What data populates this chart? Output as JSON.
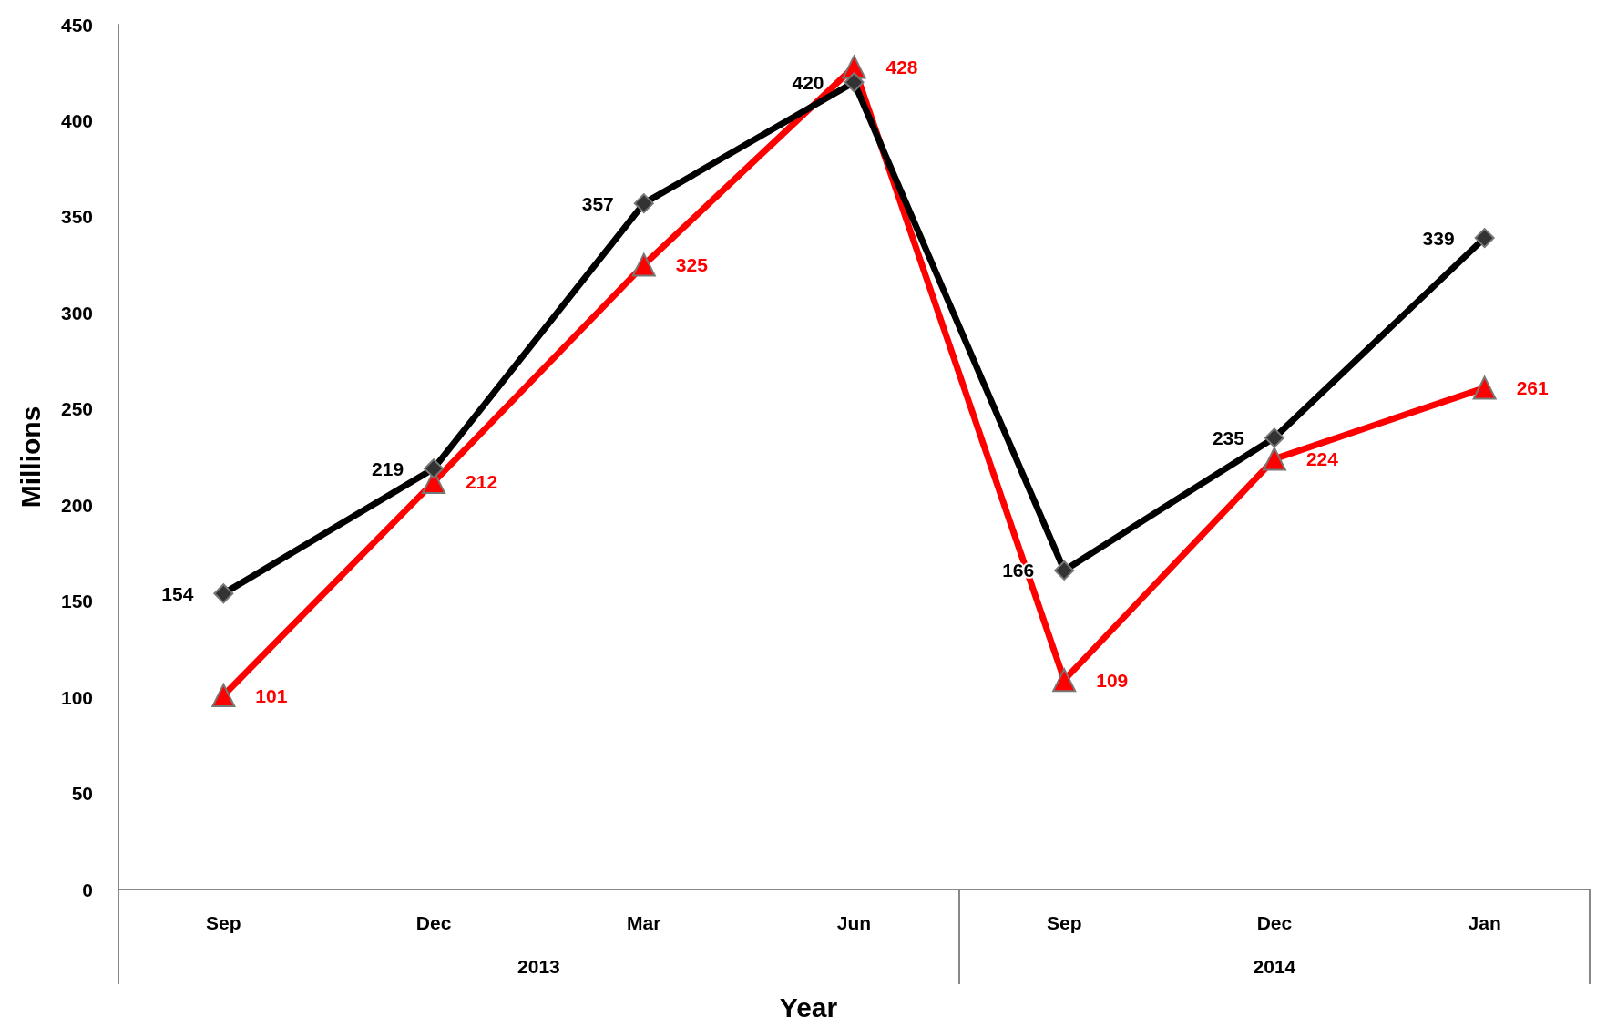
{
  "chart_data": {
    "type": "line",
    "xlabel": "Year",
    "ylabel": "Millions",
    "categories": [
      "Sep",
      "Dec",
      "Mar",
      "Jun",
      "Sep",
      "Dec",
      "Jan"
    ],
    "series": [
      {
        "color": "#000000",
        "marker": "diamond",
        "values": [
          154,
          219,
          357,
          420,
          166,
          235,
          339
        ]
      },
      {
        "color": "#ff0000",
        "marker": "triangle",
        "values": [
          101,
          212,
          325,
          428,
          109,
          224,
          261
        ]
      }
    ],
    "ylim": [
      0,
      450
    ],
    "yticks": [
      0,
      50,
      100,
      150,
      200,
      250,
      300,
      350,
      400,
      450
    ],
    "annotations": [
      "2013",
      "2014"
    ],
    "data_labels": true,
    "grid": false,
    "line_style": "solid"
  }
}
